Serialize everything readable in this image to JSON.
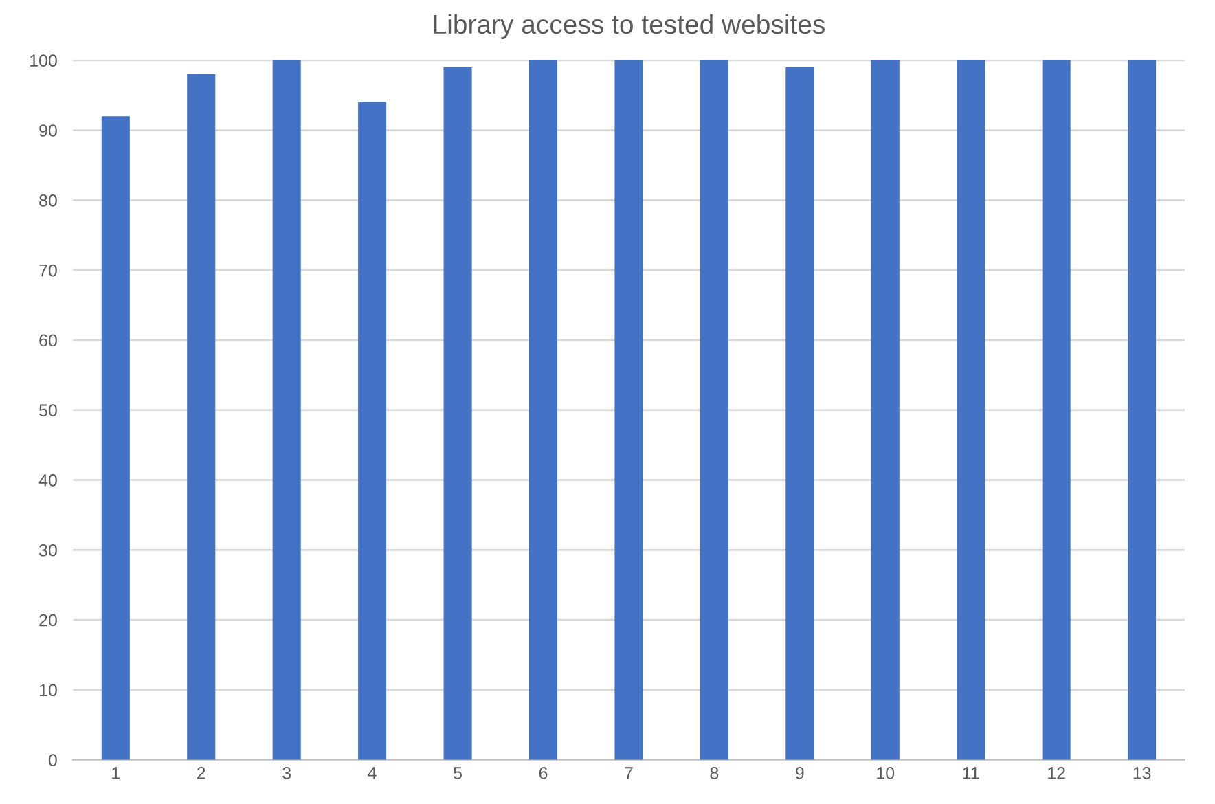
{
  "chart_data": {
    "type": "bar",
    "title": "Library access to tested websites",
    "categories": [
      "1",
      "2",
      "3",
      "4",
      "5",
      "6",
      "7",
      "8",
      "9",
      "10",
      "11",
      "12",
      "13"
    ],
    "values": [
      92,
      98,
      100,
      94,
      99,
      100,
      100,
      100,
      99,
      100,
      100,
      100,
      100
    ],
    "color": "#4472c4",
    "ylim": [
      0,
      100
    ],
    "yticks": [
      0,
      10,
      20,
      30,
      40,
      50,
      60,
      70,
      80,
      90,
      100
    ],
    "grid": "y"
  }
}
